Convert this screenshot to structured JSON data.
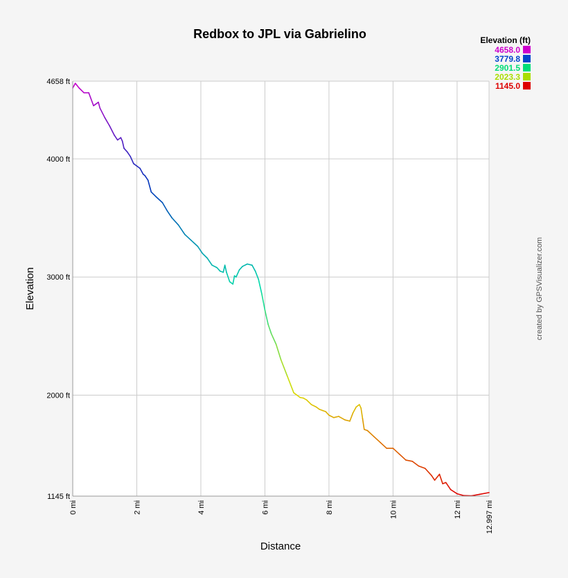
{
  "chart_data": {
    "type": "line",
    "title": "Redbox to JPL via Gabrielino",
    "xlabel": "Distance",
    "ylabel": "Elevation",
    "xlim": [
      0,
      12.997
    ],
    "ylim": [
      1145,
      4658
    ],
    "x_ticks": [
      0,
      2,
      4,
      6,
      8,
      10,
      12
    ],
    "x_tick_labels": [
      "0 mi",
      "2 mi",
      "4 mi",
      "6 mi",
      "8 mi",
      "10 mi",
      "12 mi"
    ],
    "x_end_label": "12.997 mi",
    "y_ticks": [
      1145,
      2000,
      3000,
      4000,
      4658
    ],
    "y_tick_labels": [
      "1145 ft",
      "2000 ft",
      "3000 ft",
      "4000 ft",
      "4658 ft"
    ],
    "grid": true,
    "legend": {
      "title": "Elevation (ft)",
      "placement": "top-right",
      "entries": [
        {
          "label": "4658.0",
          "color": "#cc00cc"
        },
        {
          "label": "3779.8",
          "color": "#0044cc"
        },
        {
          "label": "2901.5",
          "color": "#00dd77"
        },
        {
          "label": "2023.3",
          "color": "#aadd00"
        },
        {
          "label": "1145.0",
          "color": "#dd0000"
        }
      ]
    },
    "color_scale": [
      {
        "value": 1145,
        "color": "#dd0000"
      },
      {
        "value": 2023,
        "color": "#dddd00"
      },
      {
        "value": 2901,
        "color": "#00ddaa"
      },
      {
        "value": 3780,
        "color": "#0033bb"
      },
      {
        "value": 4658,
        "color": "#cc00cc"
      }
    ],
    "series": [
      {
        "x": [
          0,
          0.08,
          0.2,
          0.35,
          0.5,
          0.65,
          0.7,
          0.8,
          0.85,
          1.0,
          1.15,
          1.3,
          1.4,
          1.5,
          1.55,
          1.6,
          1.7,
          1.8,
          1.9,
          2.0,
          2.1,
          2.2,
          2.25,
          2.35,
          2.45,
          2.6,
          2.8,
          2.95,
          3.1,
          3.3,
          3.5,
          3.7,
          3.9,
          4.05,
          4.2,
          4.35,
          4.5,
          4.6,
          4.7,
          4.75,
          4.8,
          4.85,
          4.9,
          5.0,
          5.05,
          5.1,
          5.2,
          5.3,
          5.45,
          5.6,
          5.7,
          5.8,
          5.9,
          6.0,
          6.1,
          6.2,
          6.35,
          6.5,
          6.7,
          6.9,
          7.1,
          7.2,
          7.3,
          7.45,
          7.6,
          7.7,
          7.8,
          7.9,
          8.0,
          8.15,
          8.3,
          8.5,
          8.65,
          8.75,
          8.85,
          8.95,
          9.0,
          9.05,
          9.1,
          9.2,
          9.4,
          9.6,
          9.8,
          10.0,
          10.2,
          10.4,
          10.6,
          10.8,
          11.0,
          11.2,
          11.3,
          11.45,
          11.55,
          11.65,
          11.8,
          12.0,
          12.2,
          12.45,
          12.7,
          12.997
        ],
        "y": [
          4600,
          4640,
          4600,
          4560,
          4560,
          4450,
          4460,
          4480,
          4430,
          4350,
          4280,
          4200,
          4160,
          4180,
          4150,
          4090,
          4060,
          4020,
          3960,
          3940,
          3920,
          3870,
          3860,
          3820,
          3720,
          3680,
          3630,
          3560,
          3500,
          3440,
          3360,
          3310,
          3260,
          3200,
          3160,
          3100,
          3080,
          3050,
          3040,
          3100,
          3040,
          3000,
          2960,
          2940,
          3010,
          3000,
          3060,
          3090,
          3110,
          3100,
          3050,
          2980,
          2860,
          2720,
          2600,
          2520,
          2430,
          2300,
          2160,
          2020,
          1980,
          1975,
          1960,
          1920,
          1900,
          1880,
          1870,
          1860,
          1830,
          1810,
          1820,
          1790,
          1780,
          1850,
          1900,
          1920,
          1890,
          1800,
          1710,
          1700,
          1650,
          1600,
          1550,
          1550,
          1500,
          1450,
          1440,
          1400,
          1380,
          1320,
          1280,
          1330,
          1250,
          1260,
          1200,
          1165,
          1150,
          1148,
          1160,
          1175
        ]
      }
    ]
  },
  "credit": "created by GPSVisualizer.com"
}
